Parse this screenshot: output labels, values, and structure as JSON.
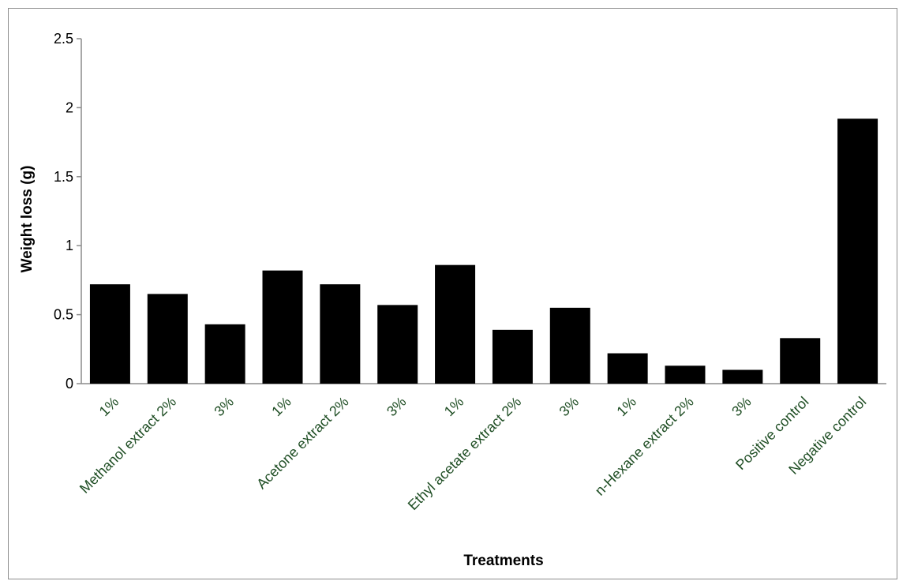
{
  "chart_data": {
    "type": "bar",
    "categories": [
      "1%",
      "Methanol extract 2%",
      "3%",
      "1%",
      "Acetone extract 2%",
      "3%",
      "1%",
      "Ethyl acetate extract 2%",
      "3%",
      "1%",
      "n-Hexane extract 2%",
      "3%",
      "Positive control",
      "Negative control"
    ],
    "values": [
      0.72,
      0.65,
      0.43,
      0.82,
      0.72,
      0.57,
      0.86,
      0.39,
      0.55,
      0.22,
      0.13,
      0.1,
      0.33,
      1.92
    ],
    "xlabel": "Treatments",
    "ylabel": "Weight loss (g)",
    "ylim": [
      0,
      2.5
    ],
    "yticks": [
      "0",
      "0.5",
      "1",
      "1.5",
      "2",
      "2.5"
    ],
    "grid": false,
    "legend": "none",
    "colors": {
      "bar": "#000000",
      "axis": "#8c8c8c",
      "category_label": "#1f4e24"
    }
  }
}
